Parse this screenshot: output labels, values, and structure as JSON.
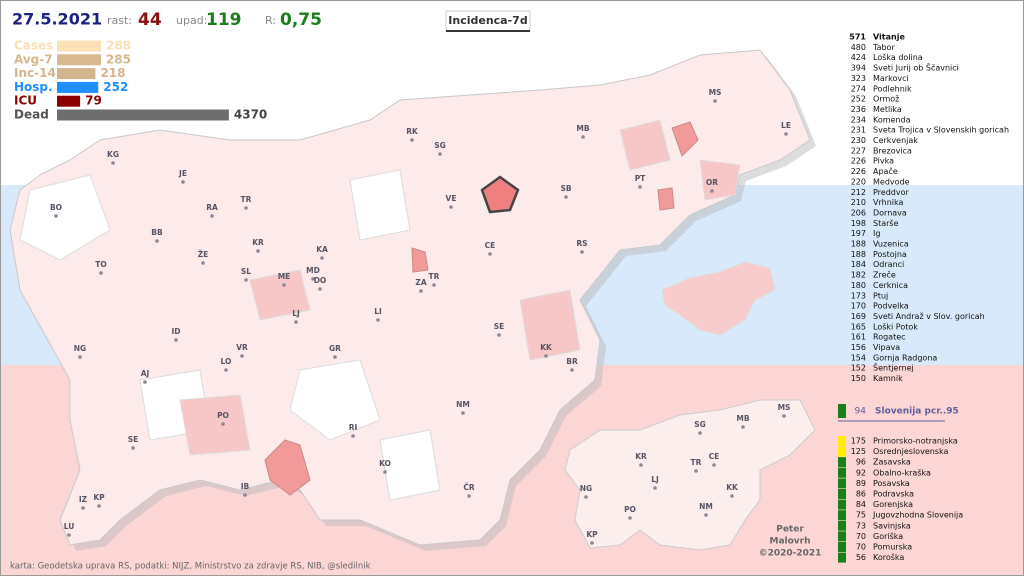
{
  "header": {
    "date": "27.5.2021",
    "growth_label": "rast:",
    "growth": 44,
    "decline_label": "upad:",
    "decline": 119,
    "r_label": "R:",
    "r": {
      "value": 0.75,
      "label": "0,75"
    },
    "map_title": "Incidenca-7d"
  },
  "stats": [
    {
      "label": "Cases",
      "value": 288,
      "color": "#fde0b6"
    },
    {
      "label": "Avg-7",
      "value": 285,
      "color": "#d8b88e"
    },
    {
      "label": "Inc-14",
      "value": 218,
      "color": "#d4b48c"
    },
    {
      "label": "Hosp.",
      "value": 252,
      "color": "#1e8fff"
    },
    {
      "label": "ICU",
      "value": 79,
      "color": "#8b0000"
    },
    {
      "label": "Dead",
      "value": 4370,
      "color": "#6e6e6e"
    }
  ],
  "municipalities": [
    {
      "value": 571,
      "name": "Vitanje"
    },
    {
      "value": 480,
      "name": "Tabor"
    },
    {
      "value": 424,
      "name": "Loška dolina"
    },
    {
      "value": 394,
      "name": "Sveti Jurij ob Ščavnici"
    },
    {
      "value": 323,
      "name": "Markovci"
    },
    {
      "value": 274,
      "name": "Podlehnik"
    },
    {
      "value": 252,
      "name": "Ormož"
    },
    {
      "value": 236,
      "name": "Metlika"
    },
    {
      "value": 234,
      "name": "Komenda"
    },
    {
      "value": 231,
      "name": "Sveta Trojica v Slovenskih goricah"
    },
    {
      "value": 230,
      "name": "Cerkvenjak"
    },
    {
      "value": 227,
      "name": "Brezovica"
    },
    {
      "value": 226,
      "name": "Pivka"
    },
    {
      "value": 226,
      "name": "Apače"
    },
    {
      "value": 220,
      "name": "Medvode"
    },
    {
      "value": 212,
      "name": "Preddvor"
    },
    {
      "value": 210,
      "name": "Vrhnika"
    },
    {
      "value": 206,
      "name": "Dornava"
    },
    {
      "value": 198,
      "name": "Starše"
    },
    {
      "value": 197,
      "name": "Ig"
    },
    {
      "value": 188,
      "name": "Vuzenica"
    },
    {
      "value": 188,
      "name": "Postojna"
    },
    {
      "value": 184,
      "name": "Odranci"
    },
    {
      "value": 182,
      "name": "Zreče"
    },
    {
      "value": 180,
      "name": "Cerknica"
    },
    {
      "value": 173,
      "name": "Ptuj"
    },
    {
      "value": 170,
      "name": "Podvelka"
    },
    {
      "value": 169,
      "name": "Sveti Andraž v Slov. goricah"
    },
    {
      "value": 165,
      "name": "Loški Potok"
    },
    {
      "value": 161,
      "name": "Rogatec"
    },
    {
      "value": 156,
      "name": "Vipava"
    },
    {
      "value": 154,
      "name": "Gornja Radgona"
    },
    {
      "value": 152,
      "name": "Šentjernej"
    },
    {
      "value": 150,
      "name": "Kamnik"
    }
  ],
  "slovenia": {
    "value": 94,
    "label": "Slovenija  pcr..95",
    "color": "#1a7f1a"
  },
  "regions": [
    {
      "value": 175,
      "name": "Primorsko-notranjska",
      "color": "#ffee00"
    },
    {
      "value": 125,
      "name": "Osrednjeslovenska",
      "color": "#ffee00"
    },
    {
      "value": 96,
      "name": "Zasavska",
      "color": "#1a7f1a"
    },
    {
      "value": 92,
      "name": "Obalno-kraška",
      "color": "#1a7f1a"
    },
    {
      "value": 89,
      "name": "Posavska",
      "color": "#1a7f1a"
    },
    {
      "value": 86,
      "name": "Podravska",
      "color": "#1a7f1a"
    },
    {
      "value": 84,
      "name": "Gorenjska",
      "color": "#1a7f1a"
    },
    {
      "value": 75,
      "name": "Jugovzhodna Slovenija",
      "color": "#1a7f1a"
    },
    {
      "value": 73,
      "name": "Savinjska",
      "color": "#1a7f1a"
    },
    {
      "value": 70,
      "name": "Goriška",
      "color": "#1a7f1a"
    },
    {
      "value": 70,
      "name": "Pomurska",
      "color": "#1a7f1a"
    },
    {
      "value": 56,
      "name": "Koroška",
      "color": "#1a7f1a"
    }
  ],
  "map_labels": [
    "KG",
    "JE",
    "BO",
    "RA",
    "TR",
    "BB",
    "KR",
    "KA",
    "ŽE",
    "SL",
    "TO",
    "ME",
    "MD",
    "DO",
    "LJ",
    "ZA",
    "TR",
    "LI",
    "ID",
    "NG",
    "VR",
    "GR",
    "AJ",
    "LO",
    "SE",
    "PO",
    "RI",
    "IZ",
    "KP",
    "LU",
    "IB",
    "KO",
    "NM",
    "ČR",
    "KK",
    "BR",
    "SE",
    "CE",
    "RS",
    "SB",
    "VE",
    "SG",
    "RK",
    "MB",
    "PT",
    "OR",
    "MS",
    "LE"
  ],
  "mini_map_labels": [
    "SG",
    "MB",
    "MS",
    "KR",
    "CE",
    "TR",
    "LJ",
    "NG",
    "KK",
    "PO",
    "NM",
    "KP"
  ],
  "footer": {
    "source": "karta: Geodetska uprava RS,  podatki: NIJZ, Ministrstvo za zdravje RS, NIB, @sledilnik",
    "author_first": "Peter",
    "author_last": "Malovrh",
    "copyright": "©2020-2021"
  }
}
